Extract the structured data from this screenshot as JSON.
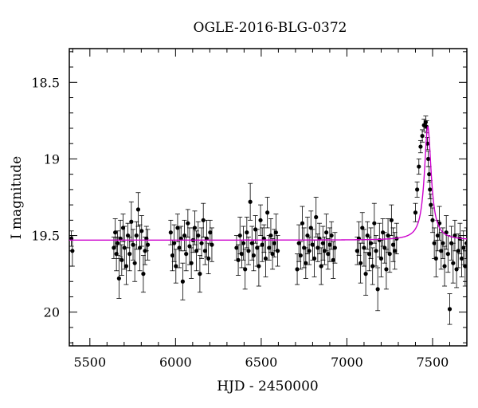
{
  "chart_data": {
    "type": "scatter",
    "title": "OGLE-2016-BLG-0372",
    "xlabel": "HJD - 2450000",
    "ylabel": "I magnitude",
    "xlim": [
      5380,
      7700
    ],
    "ylim": [
      20.22,
      18.28
    ],
    "y_inverted": true,
    "xticks": [
      5500,
      6000,
      6500,
      7000,
      7500
    ],
    "xtick_labels": [
      "5500",
      "6000",
      "6500",
      "7000",
      "7500"
    ],
    "yticks": [
      18.5,
      19,
      19.5,
      20
    ],
    "ytick_labels": [
      "18.5",
      "19",
      "19.5",
      "20"
    ],
    "grid": false,
    "legend": "none",
    "colors": {
      "points": "#000000",
      "model": "#cc00cc"
    },
    "series": [
      {
        "kind": "points_with_errorbars",
        "x": [
          5392,
          5398,
          5640,
          5648,
          5655,
          5662,
          5670,
          5678,
          5686,
          5694,
          5702,
          5712,
          5722,
          5732,
          5742,
          5752,
          5762,
          5772,
          5782,
          5792,
          5802,
          5812,
          5822,
          5830,
          5838,
          5972,
          5982,
          5992,
          6002,
          6012,
          6022,
          6032,
          6042,
          6052,
          6062,
          6072,
          6082,
          6092,
          6102,
          6112,
          6122,
          6132,
          6142,
          6152,
          6162,
          6172,
          6182,
          6192,
          6202,
          6212,
          6356,
          6366,
          6376,
          6386,
          6396,
          6406,
          6416,
          6426,
          6436,
          6446,
          6456,
          6466,
          6476,
          6486,
          6496,
          6506,
          6516,
          6526,
          6536,
          6546,
          6556,
          6566,
          6576,
          6586,
          6596,
          6710,
          6720,
          6730,
          6740,
          6750,
          6760,
          6770,
          6780,
          6790,
          6800,
          6810,
          6820,
          6830,
          6840,
          6850,
          6860,
          6870,
          6880,
          6890,
          6900,
          6910,
          6920,
          6930,
          7060,
          7070,
          7080,
          7090,
          7100,
          7110,
          7120,
          7130,
          7140,
          7150,
          7160,
          7170,
          7180,
          7190,
          7200,
          7210,
          7220,
          7230,
          7240,
          7250,
          7260,
          7270,
          7280,
          7290,
          7400,
          7410,
          7420,
          7430,
          7440,
          7450,
          7460,
          7465,
          7470,
          7475,
          7480,
          7485,
          7490,
          7500,
          7510,
          7520,
          7530,
          7540,
          7550,
          7560,
          7570,
          7580,
          7590,
          7600,
          7610,
          7620,
          7630,
          7640,
          7650,
          7660,
          7670,
          7680,
          7690,
          7698
        ],
        "y": [
          19.52,
          19.6,
          19.58,
          19.48,
          19.62,
          19.55,
          19.78,
          19.52,
          19.66,
          19.45,
          19.58,
          19.7,
          19.5,
          19.62,
          19.41,
          19.56,
          19.68,
          19.5,
          19.33,
          19.58,
          19.47,
          19.75,
          19.6,
          19.52,
          19.56,
          19.48,
          19.63,
          19.55,
          19.7,
          19.45,
          19.58,
          19.52,
          19.8,
          19.5,
          19.62,
          19.42,
          19.57,
          19.68,
          19.53,
          19.45,
          19.6,
          19.5,
          19.75,
          19.55,
          19.4,
          19.6,
          19.52,
          19.65,
          19.48,
          19.56,
          19.58,
          19.66,
          19.5,
          19.62,
          19.55,
          19.72,
          19.48,
          19.6,
          19.28,
          19.55,
          19.63,
          19.46,
          19.58,
          19.7,
          19.4,
          19.56,
          19.52,
          19.65,
          19.35,
          19.58,
          19.5,
          19.62,
          19.55,
          19.48,
          19.6,
          19.72,
          19.55,
          19.63,
          19.42,
          19.58,
          19.68,
          19.5,
          19.6,
          19.45,
          19.56,
          19.65,
          19.38,
          19.58,
          19.52,
          19.7,
          19.55,
          19.6,
          19.48,
          19.62,
          19.56,
          19.5,
          19.66,
          19.58,
          19.6,
          19.52,
          19.68,
          19.45,
          19.58,
          19.75,
          19.5,
          19.62,
          19.55,
          19.7,
          19.42,
          19.6,
          19.85,
          19.53,
          19.65,
          19.48,
          19.58,
          19.72,
          19.5,
          19.62,
          19.4,
          19.56,
          19.6,
          19.52,
          19.35,
          19.2,
          19.05,
          18.92,
          18.85,
          18.78,
          18.76,
          18.79,
          18.9,
          19.0,
          19.1,
          19.2,
          19.3,
          19.4,
          19.55,
          19.65,
          19.5,
          19.42,
          19.6,
          19.55,
          19.7,
          19.48,
          19.62,
          19.98,
          19.55,
          19.68,
          19.5,
          19.72,
          19.6,
          19.52,
          19.65,
          19.58,
          19.7,
          19.55
        ],
        "yerr": [
          0.05,
          0.1,
          0.07,
          0.09,
          0.11,
          0.08,
          0.13,
          0.12,
          0.1,
          0.09,
          0.14,
          0.12,
          0.08,
          0.11,
          0.13,
          0.1,
          0.12,
          0.09,
          0.11,
          0.15,
          0.1,
          0.12,
          0.09,
          0.08,
          0.1,
          0.08,
          0.1,
          0.12,
          0.11,
          0.09,
          0.13,
          0.08,
          0.12,
          0.1,
          0.11,
          0.09,
          0.12,
          0.1,
          0.08,
          0.11,
          0.13,
          0.09,
          0.12,
          0.1,
          0.11,
          0.09,
          0.12,
          0.1,
          0.08,
          0.11,
          0.08,
          0.1,
          0.12,
          0.09,
          0.11,
          0.13,
          0.1,
          0.09,
          0.12,
          0.11,
          0.1,
          0.09,
          0.12,
          0.13,
          0.1,
          0.11,
          0.09,
          0.12,
          0.1,
          0.08,
          0.11,
          0.1,
          0.09,
          0.12,
          0.1,
          0.1,
          0.12,
          0.09,
          0.11,
          0.13,
          0.1,
          0.12,
          0.09,
          0.11,
          0.1,
          0.12,
          0.13,
          0.09,
          0.1,
          0.12,
          0.11,
          0.09,
          0.12,
          0.1,
          0.11,
          0.09,
          0.12,
          0.1,
          0.09,
          0.11,
          0.13,
          0.1,
          0.12,
          0.14,
          0.09,
          0.11,
          0.1,
          0.12,
          0.13,
          0.1,
          0.14,
          0.11,
          0.12,
          0.09,
          0.1,
          0.13,
          0.11,
          0.12,
          0.1,
          0.11,
          0.12,
          0.1,
          0.06,
          0.05,
          0.05,
          0.04,
          0.04,
          0.04,
          0.04,
          0.04,
          0.04,
          0.05,
          0.05,
          0.06,
          0.07,
          0.08,
          0.1,
          0.12,
          0.1,
          0.11,
          0.12,
          0.1,
          0.13,
          0.11,
          0.12,
          0.1,
          0.11,
          0.13,
          0.1,
          0.12,
          0.11,
          0.1,
          0.12,
          0.11,
          0.13,
          0.1
        ]
      },
      {
        "kind": "model_curve",
        "baseline": 19.53,
        "t0": 7472,
        "peak": 18.79,
        "tE": 24
      }
    ]
  }
}
